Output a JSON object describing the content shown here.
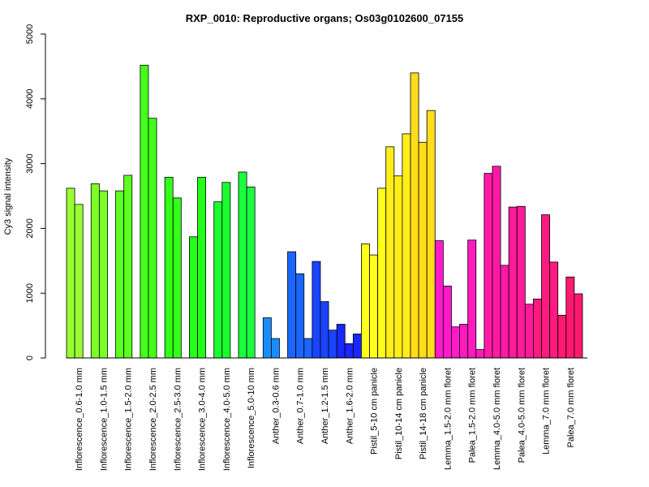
{
  "chart_data": {
    "type": "bar",
    "title": "RXP_0010: Reproductive organs; Os03g0102600_07155",
    "xlabel": "",
    "ylabel": "Cy3 signal intensity",
    "ylim": [
      0,
      5000
    ],
    "yticks": [
      "0",
      "1000",
      "2000",
      "3000",
      "4000",
      "5000"
    ],
    "grid": false,
    "legend": "none",
    "categories": [
      "Inflorescence_0.6-1.0 mm",
      "Inflorescence_1.0-1.5 mm",
      "Inflorescence_1.5-2.0 mm",
      "Inflorescence_2.0-2.5 mm",
      "Inflorescence_2.5-3.0 mm",
      "Inflorescence_3.0-4.0 mm",
      "Inflorescence_4.0-5.0 mm",
      "Inflorescence_5.0-10 mm",
      "Anther_0.3-0.6 mm",
      "Anther_0.7-1.0 mm",
      "Anther_1.2-1.5 mm",
      "Anther_1.6-2.0 mm",
      "Pistil_5-10 cm panicle",
      "Pistil_10-14 cm panicle",
      "Pistil_14-18 cm panicle",
      "Lemma_1.5-2.0 mm floret",
      "Palea_1.5-2.0 mm floret",
      "Lemma_4.0-5.0 mm floret",
      "Palea_4.0-5.0 mm floret",
      "Lemma_7.0 mm floret",
      "Palea_7.0 mm floret"
    ],
    "groups": [
      {
        "values": [
          2620,
          2370
        ],
        "color": "#99ff33"
      },
      {
        "values": [
          2690,
          2580
        ],
        "color": "#7cff26"
      },
      {
        "values": [
          2580,
          2820
        ],
        "color": "#5cff1f"
      },
      {
        "values": [
          4520,
          3700
        ],
        "color": "#44ff1a"
      },
      {
        "values": [
          2790,
          2470
        ],
        "color": "#33ff1a"
      },
      {
        "values": [
          1870,
          2790
        ],
        "color": "#24ff1a"
      },
      {
        "values": [
          2410,
          2710
        ],
        "color": "#1aff2e"
      },
      {
        "values": [
          2870,
          2640
        ],
        "color": "#1aff40"
      },
      {
        "values": [
          620,
          300
        ],
        "color": "#1a8cff"
      },
      {
        "values": [
          1640,
          1300,
          300
        ],
        "color": "#1a66ff"
      },
      {
        "values": [
          1490,
          870,
          430
        ],
        "color": "#1a44ff"
      },
      {
        "values": [
          520,
          220,
          370
        ],
        "color": "#1a26ff"
      },
      {
        "values": [
          1760,
          1590,
          2620
        ],
        "color": "#ffff1a"
      },
      {
        "values": [
          3260,
          2810,
          3460
        ],
        "color": "#ffee1a"
      },
      {
        "values": [
          4400,
          3330,
          3820
        ],
        "color": "#ffdd1a"
      },
      {
        "values": [
          1810,
          1110,
          480
        ],
        "color": "#ff1acc"
      },
      {
        "values": [
          520,
          1820,
          130
        ],
        "color": "#ff1abf"
      },
      {
        "values": [
          2850,
          2960,
          1430
        ],
        "color": "#ff1aa6"
      },
      {
        "values": [
          2330,
          2340,
          830
        ],
        "color": "#ff1a99"
      },
      {
        "values": [
          910,
          2210,
          1480
        ],
        "color": "#ff1a80"
      },
      {
        "values": [
          660,
          1250,
          990
        ],
        "color": "#ff1a70"
      }
    ]
  }
}
